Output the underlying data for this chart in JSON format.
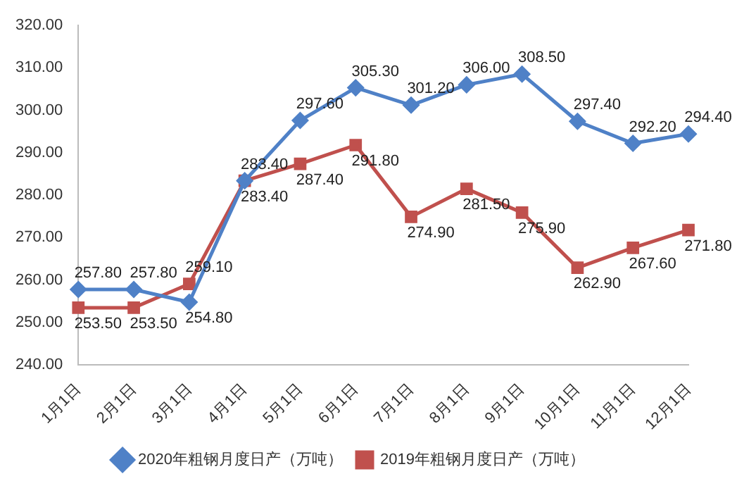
{
  "chart_data": {
    "type": "line",
    "categories": [
      "1月1日",
      "2月1日",
      "3月1日",
      "4月1日",
      "5月1日",
      "6月1日",
      "7月1日",
      "8月1日",
      "9月1日",
      "10月1日",
      "11月1日",
      "12月1日"
    ],
    "series": [
      {
        "name": "2020年粗钢月度日产（万吨）",
        "color": "#4f81c7",
        "marker": "diamond",
        "values": [
          257.8,
          257.8,
          254.8,
          283.4,
          297.6,
          305.3,
          301.2,
          306.0,
          308.5,
          297.4,
          292.2,
          294.4
        ],
        "value_labels": [
          "257.80",
          "257.80",
          "254.80",
          "283.40",
          "297.60",
          "305.30",
          "301.20",
          "306.00",
          "308.50",
          "297.40",
          "292.20",
          "294.40"
        ]
      },
      {
        "name": "2019年粗钢月度日产（万吨）",
        "color": "#c0504d",
        "marker": "square",
        "values": [
          253.5,
          253.5,
          259.1,
          283.4,
          287.4,
          291.8,
          274.9,
          281.5,
          275.9,
          262.9,
          267.6,
          271.8
        ],
        "value_labels": [
          "253.50",
          "253.50",
          "259.10",
          "283.40",
          "287.40",
          "291.80",
          "274.90",
          "281.50",
          "275.90",
          "262.90",
          "267.60",
          "271.80"
        ]
      }
    ],
    "ylim": [
      240,
      320
    ],
    "yticks": [
      {
        "value": 240,
        "label": "240.00"
      },
      {
        "value": 250,
        "label": "250.00"
      },
      {
        "value": 260,
        "label": "260.00"
      },
      {
        "value": 270,
        "label": "270.00"
      },
      {
        "value": 280,
        "label": "280.00"
      },
      {
        "value": 290,
        "label": "290.00"
      },
      {
        "value": 300,
        "label": "300.00"
      },
      {
        "value": 310,
        "label": "310.00"
      },
      {
        "value": 320,
        "label": "320.00"
      }
    ],
    "grid": false,
    "legend": "bottom",
    "line_style": "solid"
  }
}
